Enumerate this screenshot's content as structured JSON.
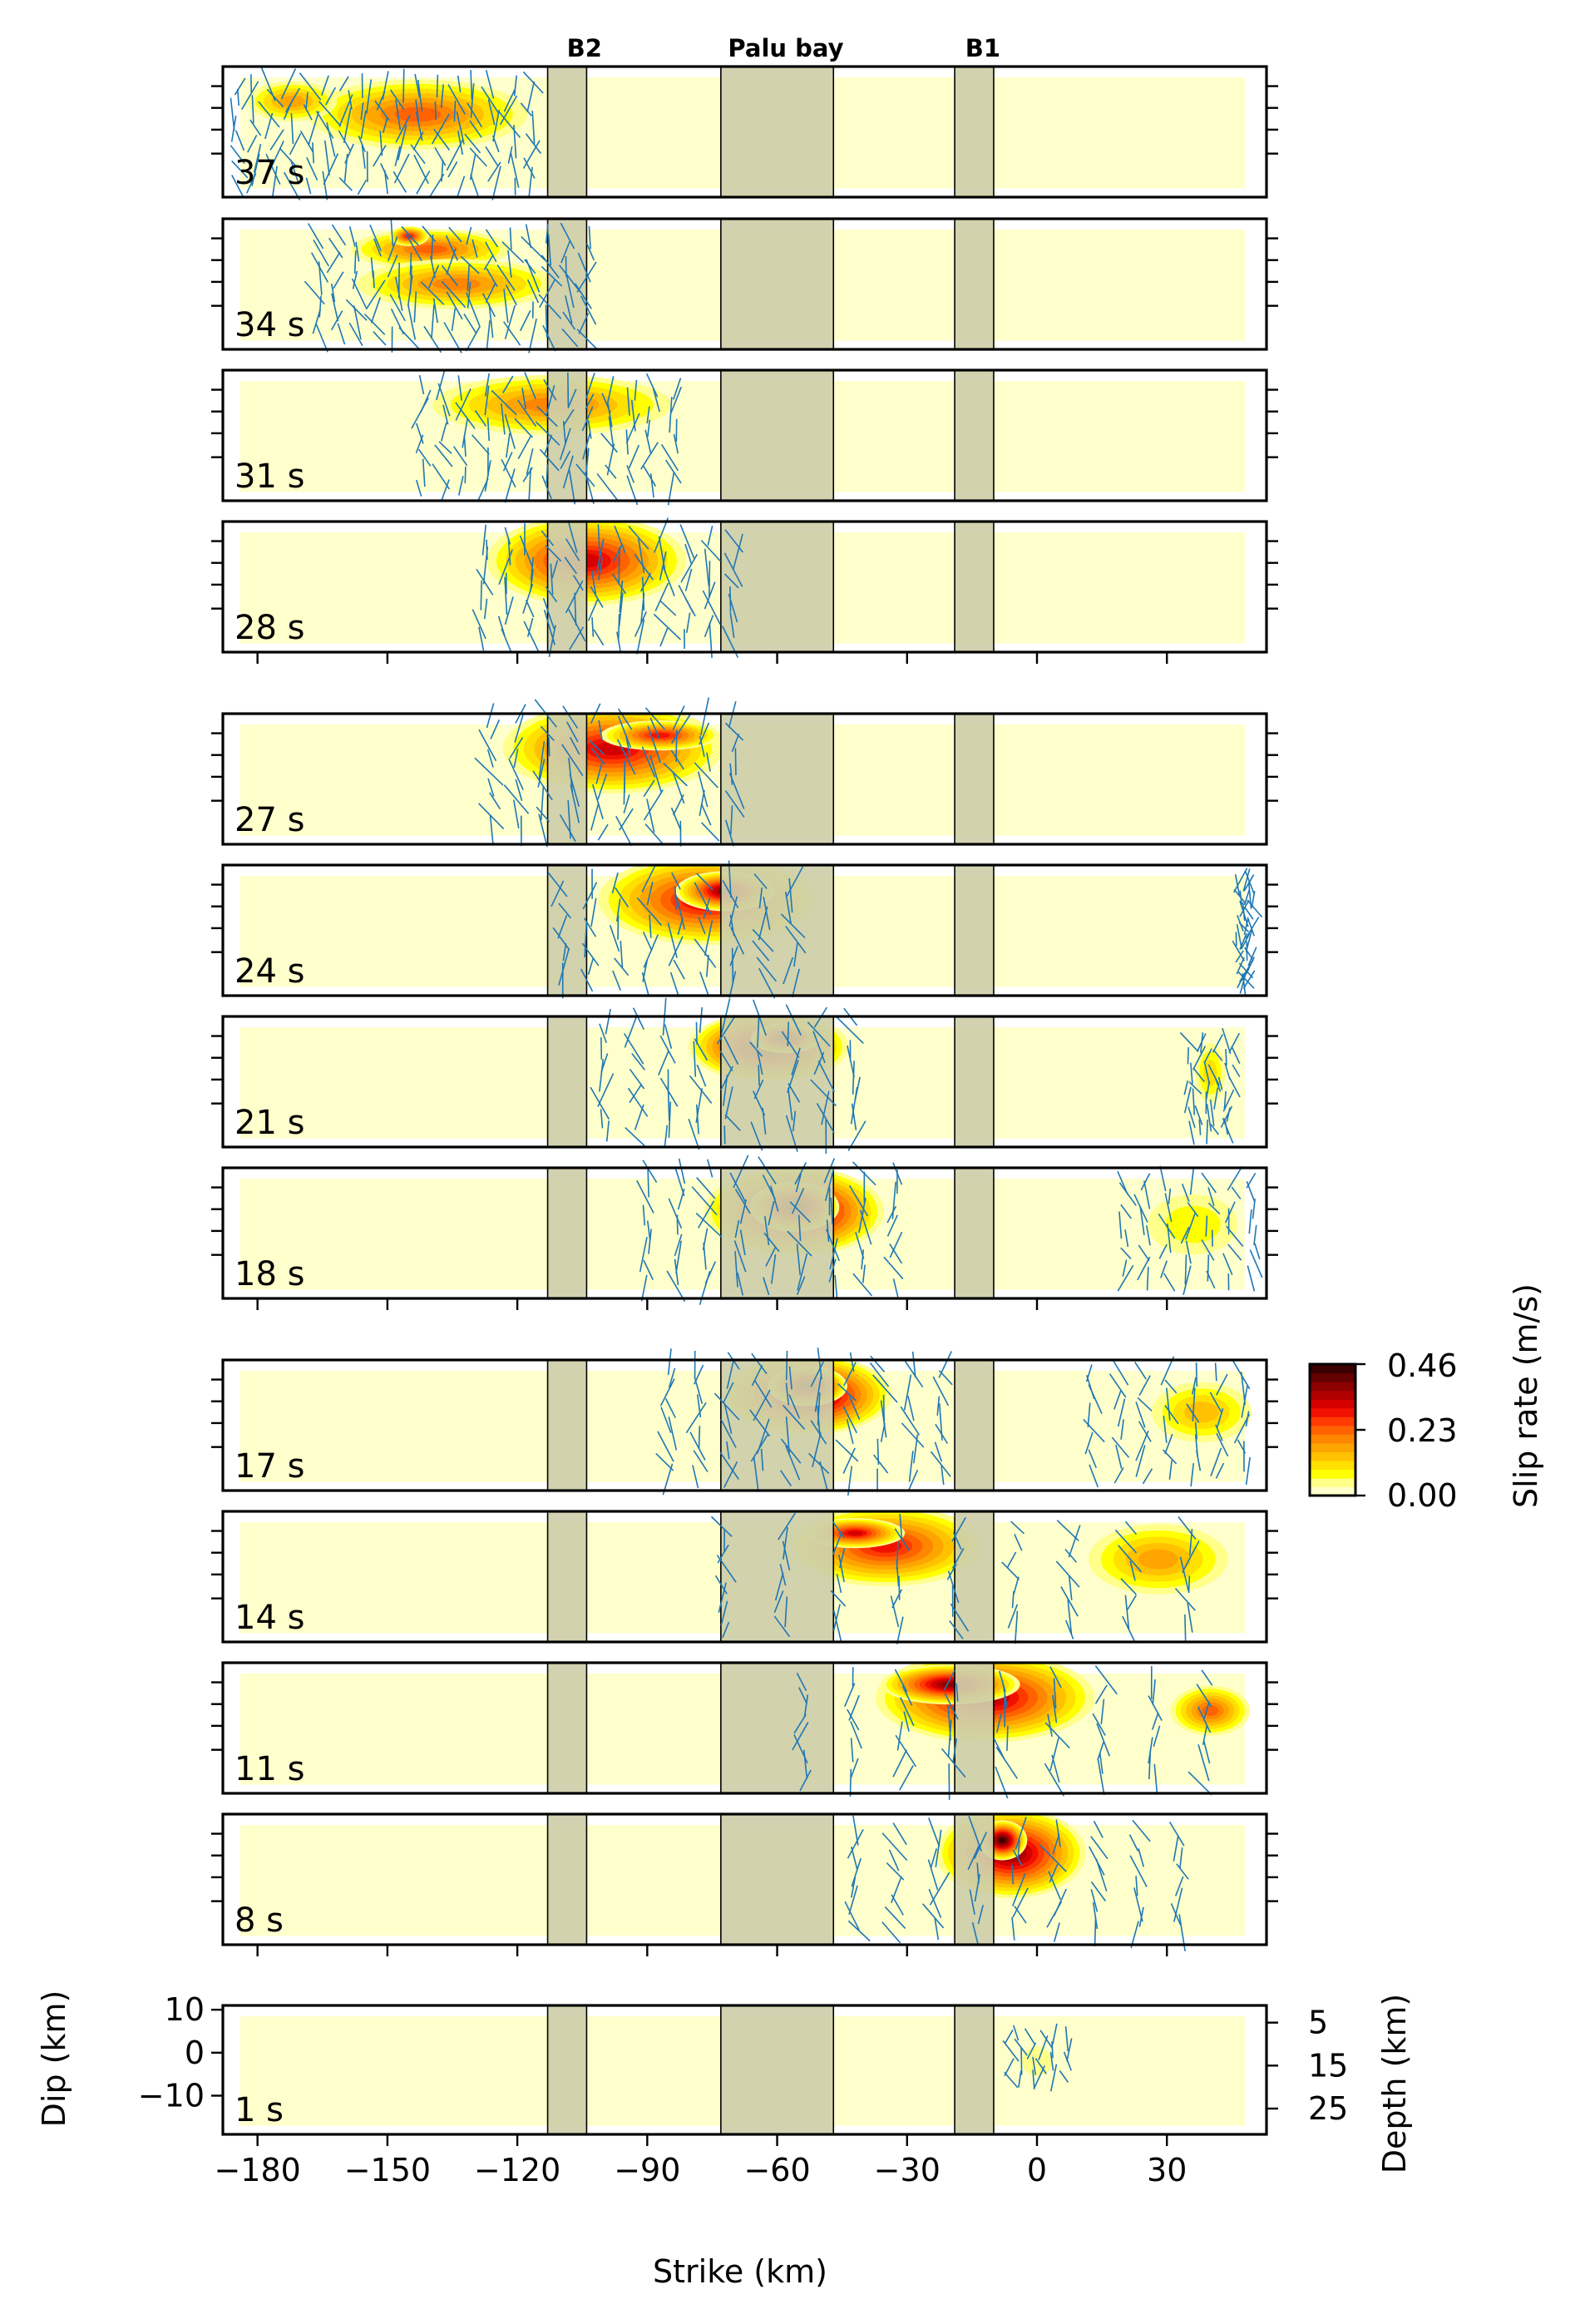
{
  "chart_data": {
    "type": "heatmap",
    "title": "",
    "xlabel": "Strike (km)",
    "ylabel": "Dip (km)",
    "ylabel_right": "Depth (km)",
    "xlim": [
      -188,
      53
    ],
    "ylim": [
      -19,
      11
    ],
    "x_ticks": [
      -180,
      -150,
      -120,
      -90,
      -60,
      -30,
      0,
      30
    ],
    "x_tick_labels": [
      "−180",
      "−150",
      "−120",
      "−90",
      "−60",
      "−30",
      "0",
      "30"
    ],
    "dip_ticks": [
      10,
      0,
      -10
    ],
    "dip_tick_labels": [
      "10",
      "0",
      "−10"
    ],
    "depth_ticks": [
      5,
      15,
      25
    ],
    "depth_tick_labels": [
      "5",
      "15",
      "25"
    ],
    "fault_extent": {
      "strike": [
        -184,
        48
      ],
      "dip": [
        -17,
        8.5
      ]
    },
    "segment_labels": [
      {
        "label": "B2",
        "x": -104.5
      },
      {
        "label": "Palu bay",
        "x": -58
      },
      {
        "label": "B1",
        "x": -12.5
      }
    ],
    "gray_bands": [
      [
        -113,
        -104
      ],
      [
        -73,
        -47
      ],
      [
        -19,
        -10
      ]
    ],
    "colorbar": {
      "label": "Slip rate (m/s)",
      "min": 0.0,
      "max": 0.46,
      "ticks": [
        0.46,
        0.23,
        0.0
      ],
      "tick_labels": [
        "0.46",
        "0.23",
        "0.00"
      ],
      "colors": [
        "#ffffcc",
        "#ffff8a",
        "#ffff00",
        "#ffe000",
        "#ffc100",
        "#ffa500",
        "#ff8600",
        "#ff6300",
        "#ff3b00",
        "#f21100",
        "#d40000",
        "#b00000",
        "#8c0000",
        "#640000",
        "#3c0000"
      ]
    },
    "snapshots": [
      {
        "time": "37 s",
        "patches": [
          {
            "x": -143,
            "y": 0,
            "sx": 22,
            "sy": 7,
            "v": 0.22
          },
          {
            "x": -172,
            "y": 3,
            "sx": 9,
            "sy": 4,
            "v": 0.17
          }
        ],
        "arrows": [
          {
            "x0": -185,
            "x1": -117,
            "y0": -16,
            "y1": 10,
            "s": 16,
            "len": 3.2
          }
        ]
      },
      {
        "time": "34 s",
        "patches": [
          {
            "x": -140,
            "y": 4,
            "sx": 16,
            "sy": 4,
            "v": 0.22
          },
          {
            "x": -134,
            "y": -4,
            "sx": 20,
            "sy": 5,
            "v": 0.2
          },
          {
            "x": -145,
            "y": 7,
            "sx": 4,
            "sy": 2,
            "v": 0.3
          }
        ],
        "arrows": [
          {
            "x0": -166,
            "x1": -104,
            "y0": -16,
            "y1": 9,
            "s": 14,
            "len": 3.2
          }
        ]
      },
      {
        "time": "31 s",
        "patches": [
          {
            "x": -112,
            "y": 3,
            "sx": 24,
            "sy": 6,
            "v": 0.2
          }
        ],
        "arrows": [
          {
            "x0": -142,
            "x1": -84,
            "y0": -16,
            "y1": 10,
            "s": 12,
            "len": 3.2
          }
        ]
      },
      {
        "time": "28 s",
        "patches": [
          {
            "x": -104,
            "y": 2,
            "sx": 20,
            "sy": 9,
            "v": 0.33
          }
        ],
        "arrows": [
          {
            "x0": -128,
            "x1": -70,
            "y0": -16,
            "y1": 10,
            "s": 11,
            "len": 3.4
          }
        ]
      },
      {
        "time": "27 s",
        "patches": [
          {
            "x": -98,
            "y": 3,
            "sx": 22,
            "sy": 9,
            "v": 0.34
          },
          {
            "x": -87,
            "y": 6,
            "sx": 12,
            "sy": 3,
            "v": 0.3
          }
        ],
        "arrows": [
          {
            "x0": -126,
            "x1": -64,
            "y0": -16,
            "y1": 12,
            "s": 10,
            "len": 3.5
          }
        ]
      },
      {
        "time": "24 s",
        "patches": [
          {
            "x": -76,
            "y": 3,
            "sx": 22,
            "sy": 9,
            "v": 0.33
          },
          {
            "x": -72,
            "y": 5,
            "sx": 10,
            "sy": 4,
            "v": 0.38
          }
        ],
        "arrows": [
          {
            "x0": -110,
            "x1": -50,
            "y0": -16,
            "y1": 10,
            "s": 9,
            "len": 3.4
          },
          {
            "x0": 47,
            "x1": 50,
            "y0": -16,
            "y1": 8,
            "s": 5,
            "len": 2.5
          }
        ]
      },
      {
        "time": "21 s",
        "patches": [
          {
            "x": -62,
            "y": 4,
            "sx": 16,
            "sy": 7,
            "v": 0.42
          },
          {
            "x": -58,
            "y": 6,
            "sx": 7,
            "sy": 3,
            "v": 0.46
          },
          {
            "x": 40,
            "y": -2,
            "sx": 3,
            "sy": 6,
            "v": 0.1
          }
        ],
        "arrows": [
          {
            "x0": -100,
            "x1": -35,
            "y0": -16,
            "y1": 12,
            "s": 9,
            "len": 3.4
          },
          {
            "x0": 35,
            "x1": 45,
            "y0": -15,
            "y1": 6,
            "s": 5,
            "len": 2.5
          }
        ]
      },
      {
        "time": "18 s",
        "patches": [
          {
            "x": -56,
            "y": 1,
            "sx": 18,
            "sy": 9,
            "v": 0.42
          },
          {
            "x": -56,
            "y": 2,
            "sx": 9,
            "sy": 5,
            "v": 0.46
          },
          {
            "x": 36,
            "y": -2,
            "sx": 9,
            "sy": 6,
            "v": 0.08
          }
        ],
        "arrows": [
          {
            "x0": -90,
            "x1": -26,
            "y0": -16,
            "y1": 11,
            "s": 9,
            "len": 3.4
          },
          {
            "x0": 20,
            "x1": 50,
            "y0": -15,
            "y1": 9,
            "s": 6,
            "len": 2.8
          }
        ]
      },
      {
        "time": "17 s",
        "patches": [
          {
            "x": -53,
            "y": 3,
            "sx": 17,
            "sy": 8,
            "v": 0.43
          },
          {
            "x": -53,
            "y": 5,
            "sx": 8,
            "sy": 4,
            "v": 0.46
          },
          {
            "x": 38,
            "y": -1,
            "sx": 10,
            "sy": 6,
            "v": 0.12
          }
        ],
        "arrows": [
          {
            "x0": -85,
            "x1": -22,
            "y0": -16,
            "y1": 11,
            "s": 9,
            "len": 3.4
          },
          {
            "x0": 13,
            "x1": 48,
            "y0": -15,
            "y1": 9,
            "s": 6,
            "len": 3.0
          }
        ]
      },
      {
        "time": "14 s",
        "patches": [
          {
            "x": -35,
            "y": 3,
            "sx": 20,
            "sy": 8,
            "v": 0.3
          },
          {
            "x": -42,
            "y": 6,
            "sx": 10,
            "sy": 3,
            "v": 0.34
          },
          {
            "x": 28,
            "y": 0,
            "sx": 14,
            "sy": 7,
            "v": 0.18
          }
        ],
        "arrows": [
          {
            "x0": -72,
            "x1": 48,
            "y0": -16,
            "y1": 10,
            "s": 9,
            "len": 3.2
          }
        ]
      },
      {
        "time": "11 s",
        "patches": [
          {
            "x": -12,
            "y": 3,
            "sx": 22,
            "sy": 9,
            "v": 0.36
          },
          {
            "x": -20,
            "y": 6,
            "sx": 14,
            "sy": 4,
            "v": 0.4
          },
          {
            "x": 40,
            "y": 0,
            "sx": 8,
            "sy": 5,
            "v": 0.24
          }
        ],
        "arrows": [
          {
            "x0": -54,
            "x1": 50,
            "y0": -16,
            "y1": 10,
            "s": 9,
            "len": 3.4
          }
        ]
      },
      {
        "time": "8 s",
        "patches": [
          {
            "x": -6,
            "y": 2,
            "sx": 15,
            "sy": 9,
            "v": 0.4
          },
          {
            "x": -8,
            "y": 5,
            "sx": 5,
            "sy": 4,
            "v": 0.46
          }
        ],
        "arrows": [
          {
            "x0": -42,
            "x1": 42,
            "y0": -16,
            "y1": 9,
            "s": 9,
            "len": 3.4
          }
        ]
      }
    ],
    "first_snapshot": {
      "time": "1 s",
      "patches": [
        {
          "x": 0,
          "y": -2,
          "sx": 3,
          "sy": 3,
          "v": 0.04
        }
      ],
      "arrows": [
        {
          "x0": -7,
          "x1": 7,
          "y0": -6,
          "y1": 5,
          "s": 5,
          "len": 2.5
        }
      ]
    }
  }
}
